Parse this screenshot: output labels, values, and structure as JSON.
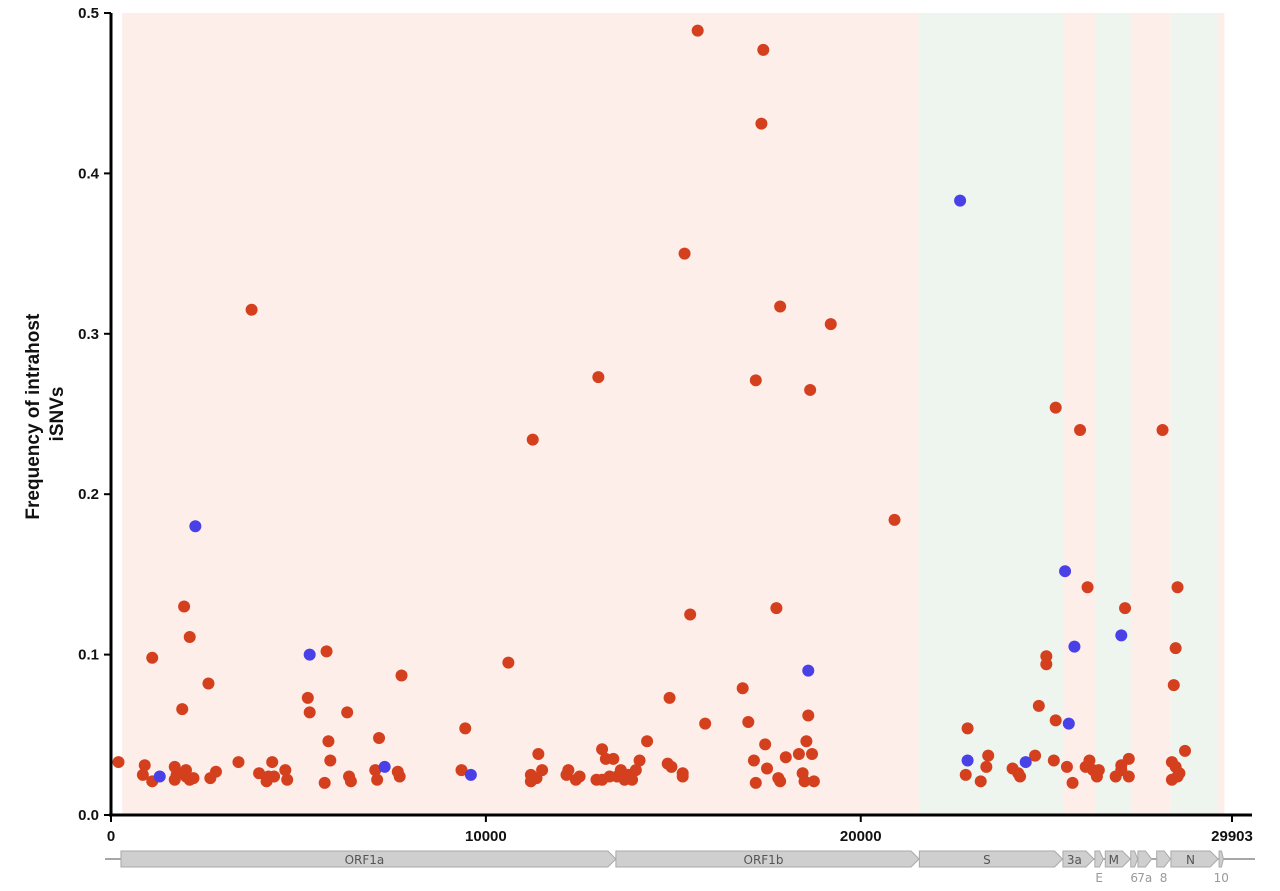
{
  "chart_data": {
    "type": "scatter",
    "ylabel": [
      "Frequency of intrahost",
      "iSNVs"
    ],
    "xlim": [
      0,
      29903
    ],
    "ylim": [
      0,
      0.5
    ],
    "x_ticks": [
      {
        "value": 0,
        "label": "0"
      },
      {
        "value": 10000,
        "label": "10000"
      },
      {
        "value": 20000,
        "label": "20000"
      },
      {
        "value": 29903,
        "label": "29903"
      }
    ],
    "y_ticks": [
      {
        "value": 0,
        "label": "0.0"
      },
      {
        "value": 0.1,
        "label": "0.1"
      },
      {
        "value": 0.2,
        "label": "0.2"
      },
      {
        "value": 0.3,
        "label": "0.3"
      },
      {
        "value": 0.4,
        "label": "0.4"
      },
      {
        "value": 0.5,
        "label": "0.5"
      }
    ],
    "grid": false,
    "colors": {
      "series_a": "#d4401e",
      "series_b": "#4a40e8",
      "band_pink": "#fdeeea",
      "band_green": "#edf5ee",
      "gene_fill": "#cfcfcf",
      "gene_stroke": "#a9a9a9"
    },
    "bands": [
      {
        "start": 300,
        "end": 21550,
        "color": "pink"
      },
      {
        "start": 21550,
        "end": 25390,
        "color": "green"
      },
      {
        "start": 25390,
        "end": 26250,
        "color": "pink"
      },
      {
        "start": 26250,
        "end": 27200,
        "color": "green"
      },
      {
        "start": 27200,
        "end": 28270,
        "color": "pink"
      },
      {
        "start": 28270,
        "end": 29530,
        "color": "green"
      },
      {
        "start": 29530,
        "end": 29700,
        "color": "pink"
      }
    ],
    "genes": [
      {
        "start": 266,
        "end": 13468,
        "label": "ORF1a",
        "label_pos": "inside"
      },
      {
        "start": 13468,
        "end": 21555,
        "label": "ORF1b",
        "label_pos": "inside"
      },
      {
        "start": 21563,
        "end": 25384,
        "label": "S",
        "label_pos": "inside"
      },
      {
        "start": 25393,
        "end": 26220,
        "label": "3a",
        "label_pos": "inside"
      },
      {
        "start": 26245,
        "end": 26472,
        "label": "E",
        "label_pos": "below"
      },
      {
        "start": 26523,
        "end": 27191,
        "label": "M",
        "label_pos": "inside"
      },
      {
        "start": 27202,
        "end": 27387,
        "label": "6",
        "label_pos": "below"
      },
      {
        "start": 27394,
        "end": 27759,
        "label": "7a",
        "label_pos": "below"
      },
      {
        "start": 27894,
        "end": 28259,
        "label": "8",
        "label_pos": "below"
      },
      {
        "start": 28274,
        "end": 29533,
        "label": "N",
        "label_pos": "inside"
      },
      {
        "start": 29558,
        "end": 29674,
        "label": "10",
        "label_pos": "below"
      }
    ],
    "series": [
      {
        "key": "series_a",
        "points": [
          [
            200,
            0.033
          ],
          [
            850,
            0.025
          ],
          [
            900,
            0.031
          ],
          [
            1100,
            0.021
          ],
          [
            1100,
            0.098
          ],
          [
            1700,
            0.022
          ],
          [
            1700,
            0.03
          ],
          [
            1750,
            0.025
          ],
          [
            1900,
            0.066
          ],
          [
            1950,
            0.13
          ],
          [
            2000,
            0.024
          ],
          [
            2000,
            0.028
          ],
          [
            2100,
            0.022
          ],
          [
            2100,
            0.111
          ],
          [
            2200,
            0.023
          ],
          [
            2600,
            0.082
          ],
          [
            2650,
            0.023
          ],
          [
            2800,
            0.027
          ],
          [
            3400,
            0.033
          ],
          [
            3750,
            0.315
          ],
          [
            3950,
            0.026
          ],
          [
            4150,
            0.021
          ],
          [
            4200,
            0.024
          ],
          [
            4300,
            0.033
          ],
          [
            4350,
            0.024
          ],
          [
            4650,
            0.028
          ],
          [
            4700,
            0.022
          ],
          [
            5250,
            0.073
          ],
          [
            5300,
            0.064
          ],
          [
            5700,
            0.02
          ],
          [
            5750,
            0.102
          ],
          [
            5800,
            0.046
          ],
          [
            5850,
            0.034
          ],
          [
            6300,
            0.064
          ],
          [
            6350,
            0.024
          ],
          [
            6400,
            0.021
          ],
          [
            7050,
            0.028
          ],
          [
            7100,
            0.022
          ],
          [
            7150,
            0.048
          ],
          [
            7650,
            0.027
          ],
          [
            7700,
            0.024
          ],
          [
            7750,
            0.087
          ],
          [
            9350,
            0.028
          ],
          [
            9450,
            0.054
          ],
          [
            10600,
            0.095
          ],
          [
            11200,
            0.021
          ],
          [
            11200,
            0.025
          ],
          [
            11250,
            0.234
          ],
          [
            11350,
            0.023
          ],
          [
            11400,
            0.038
          ],
          [
            11500,
            0.028
          ],
          [
            12150,
            0.025
          ],
          [
            12200,
            0.028
          ],
          [
            12400,
            0.022
          ],
          [
            12500,
            0.024
          ],
          [
            12950,
            0.022
          ],
          [
            13000,
            0.273
          ],
          [
            13100,
            0.022
          ],
          [
            13100,
            0.041
          ],
          [
            13200,
            0.035
          ],
          [
            13300,
            0.024
          ],
          [
            13400,
            0.035
          ],
          [
            13500,
            0.024
          ],
          [
            13600,
            0.028
          ],
          [
            13700,
            0.022
          ],
          [
            13800,
            0.025
          ],
          [
            13900,
            0.022
          ],
          [
            14000,
            0.028
          ],
          [
            14100,
            0.034
          ],
          [
            14300,
            0.046
          ],
          [
            14850,
            0.032
          ],
          [
            14900,
            0.073
          ],
          [
            14950,
            0.03
          ],
          [
            15250,
            0.026
          ],
          [
            15250,
            0.024
          ],
          [
            15300,
            0.35
          ],
          [
            15450,
            0.125
          ],
          [
            15650,
            0.489
          ],
          [
            15850,
            0.057
          ],
          [
            16850,
            0.079
          ],
          [
            17000,
            0.058
          ],
          [
            17150,
            0.034
          ],
          [
            17200,
            0.271
          ],
          [
            17200,
            0.02
          ],
          [
            17350,
            0.431
          ],
          [
            17400,
            0.477
          ],
          [
            17450,
            0.044
          ],
          [
            17500,
            0.029
          ],
          [
            17750,
            0.129
          ],
          [
            17800,
            0.023
          ],
          [
            17850,
            0.021
          ],
          [
            17850,
            0.317
          ],
          [
            18000,
            0.036
          ],
          [
            18350,
            0.038
          ],
          [
            18450,
            0.026
          ],
          [
            18500,
            0.021
          ],
          [
            18550,
            0.046
          ],
          [
            18600,
            0.062
          ],
          [
            18650,
            0.265
          ],
          [
            18700,
            0.038
          ],
          [
            18750,
            0.021
          ],
          [
            19200,
            0.306
          ],
          [
            20900,
            0.184
          ],
          [
            22800,
            0.025
          ],
          [
            22850,
            0.054
          ],
          [
            23200,
            0.021
          ],
          [
            23350,
            0.03
          ],
          [
            23400,
            0.037
          ],
          [
            24050,
            0.029
          ],
          [
            24200,
            0.026
          ],
          [
            24250,
            0.024
          ],
          [
            24650,
            0.037
          ],
          [
            24750,
            0.068
          ],
          [
            24950,
            0.094
          ],
          [
            24950,
            0.099
          ],
          [
            25150,
            0.034
          ],
          [
            25200,
            0.059
          ],
          [
            25200,
            0.254
          ],
          [
            25500,
            0.03
          ],
          [
            25650,
            0.02
          ],
          [
            25850,
            0.24
          ],
          [
            26000,
            0.03
          ],
          [
            26050,
            0.142
          ],
          [
            26100,
            0.034
          ],
          [
            26200,
            0.028
          ],
          [
            26300,
            0.024
          ],
          [
            26350,
            0.028
          ],
          [
            26800,
            0.024
          ],
          [
            26950,
            0.031
          ],
          [
            26950,
            0.028
          ],
          [
            27050,
            0.129
          ],
          [
            27150,
            0.024
          ],
          [
            27150,
            0.035
          ],
          [
            28050,
            0.24
          ],
          [
            28300,
            0.022
          ],
          [
            28300,
            0.033
          ],
          [
            28350,
            0.081
          ],
          [
            28400,
            0.104
          ],
          [
            28400,
            0.03
          ],
          [
            28450,
            0.024
          ],
          [
            28450,
            0.142
          ],
          [
            28500,
            0.026
          ],
          [
            28650,
            0.04
          ]
        ]
      },
      {
        "key": "series_b",
        "points": [
          [
            1300,
            0.024
          ],
          [
            2250,
            0.18
          ],
          [
            5300,
            0.1
          ],
          [
            7300,
            0.03
          ],
          [
            9600,
            0.025
          ],
          [
            18600,
            0.09
          ],
          [
            22650,
            0.383
          ],
          [
            22850,
            0.034
          ],
          [
            24400,
            0.033
          ],
          [
            25450,
            0.152
          ],
          [
            25550,
            0.057
          ],
          [
            25700,
            0.105
          ],
          [
            26950,
            0.112
          ]
        ]
      }
    ]
  }
}
